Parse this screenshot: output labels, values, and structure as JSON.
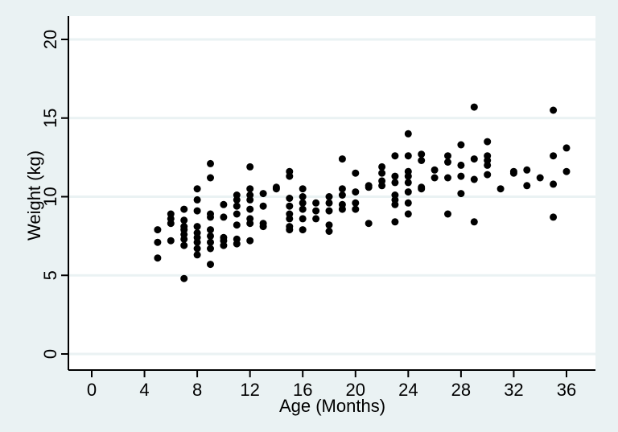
{
  "chart_data": {
    "type": "scatter",
    "title": "",
    "xlabel": "Age (Months)",
    "ylabel": "Weight (kg)",
    "xlim": [
      -2,
      38
    ],
    "ylim": [
      -1,
      21.5
    ],
    "xticks": [
      0,
      4,
      8,
      12,
      16,
      20,
      24,
      28,
      32,
      36
    ],
    "yticks": [
      0,
      5,
      10,
      15,
      20
    ],
    "grid": true,
    "colors": {
      "background": "#eaf2f3",
      "plot_area": "#ffffff",
      "gridline": "#eaf2f3",
      "marker": "#000000"
    },
    "points": [
      [
        5,
        7.9
      ],
      [
        5,
        7.1
      ],
      [
        5,
        6.1
      ],
      [
        6,
        8.9
      ],
      [
        6,
        8.6
      ],
      [
        6,
        8.3
      ],
      [
        6,
        7.2
      ],
      [
        7,
        9.2
      ],
      [
        7,
        8.5
      ],
      [
        7,
        8.1
      ],
      [
        7,
        7.9
      ],
      [
        7,
        7.6
      ],
      [
        7,
        7.3
      ],
      [
        7,
        6.9
      ],
      [
        7,
        4.8
      ],
      [
        8,
        10.5
      ],
      [
        8,
        9.8
      ],
      [
        8,
        9.1
      ],
      [
        8,
        8.1
      ],
      [
        8,
        7.7
      ],
      [
        8,
        7.4
      ],
      [
        8,
        7.1
      ],
      [
        8,
        6.7
      ],
      [
        8,
        6.3
      ],
      [
        9,
        12.1
      ],
      [
        9,
        11.2
      ],
      [
        9,
        8.9
      ],
      [
        9,
        8.7
      ],
      [
        9,
        7.9
      ],
      [
        9,
        7.5
      ],
      [
        9,
        7.1
      ],
      [
        9,
        6.7
      ],
      [
        9,
        5.7
      ],
      [
        10,
        9.5
      ],
      [
        10,
        8.7
      ],
      [
        10,
        7.4
      ],
      [
        10,
        7.2
      ],
      [
        10,
        6.9
      ],
      [
        11,
        10.1
      ],
      [
        11,
        9.8
      ],
      [
        11,
        9.4
      ],
      [
        11,
        8.9
      ],
      [
        11,
        8.2
      ],
      [
        11,
        7.3
      ],
      [
        11,
        7.0
      ],
      [
        12,
        11.9
      ],
      [
        12,
        10.5
      ],
      [
        12,
        10.1
      ],
      [
        12,
        9.8
      ],
      [
        12,
        9.2
      ],
      [
        12,
        8.6
      ],
      [
        12,
        8.3
      ],
      [
        12,
        7.2
      ],
      [
        13,
        10.2
      ],
      [
        13,
        9.4
      ],
      [
        13,
        8.3
      ],
      [
        13,
        8.1
      ],
      [
        14,
        10.6
      ],
      [
        14,
        10.5
      ],
      [
        15,
        11.6
      ],
      [
        15,
        11.3
      ],
      [
        15,
        9.9
      ],
      [
        15,
        9.4
      ],
      [
        15,
        8.9
      ],
      [
        15,
        8.6
      ],
      [
        15,
        8.1
      ],
      [
        15,
        7.9
      ],
      [
        16,
        10.5
      ],
      [
        16,
        10.0
      ],
      [
        16,
        9.6
      ],
      [
        16,
        9.2
      ],
      [
        16,
        8.6
      ],
      [
        16,
        7.9
      ],
      [
        17,
        9.6
      ],
      [
        17,
        9.1
      ],
      [
        17,
        8.6
      ],
      [
        18,
        10.0
      ],
      [
        18,
        9.6
      ],
      [
        18,
        9.1
      ],
      [
        18,
        8.2
      ],
      [
        18,
        7.8
      ],
      [
        19,
        12.4
      ],
      [
        19,
        10.5
      ],
      [
        19,
        10.1
      ],
      [
        19,
        9.5
      ],
      [
        19,
        9.2
      ],
      [
        20,
        11.5
      ],
      [
        20,
        10.3
      ],
      [
        20,
        9.6
      ],
      [
        20,
        9.2
      ],
      [
        21,
        10.7
      ],
      [
        21,
        10.6
      ],
      [
        21,
        8.3
      ],
      [
        22,
        11.9
      ],
      [
        22,
        11.5
      ],
      [
        22,
        11.0
      ],
      [
        22,
        10.7
      ],
      [
        23,
        12.6
      ],
      [
        23,
        11.3
      ],
      [
        23,
        10.9
      ],
      [
        23,
        10.1
      ],
      [
        23,
        9.8
      ],
      [
        23,
        9.5
      ],
      [
        23,
        8.4
      ],
      [
        24,
        14.0
      ],
      [
        24,
        12.6
      ],
      [
        24,
        11.6
      ],
      [
        24,
        11.3
      ],
      [
        24,
        10.9
      ],
      [
        24,
        10.3
      ],
      [
        24,
        9.6
      ],
      [
        24,
        8.9
      ],
      [
        25,
        12.7
      ],
      [
        25,
        12.3
      ],
      [
        25,
        10.6
      ],
      [
        25,
        10.5
      ],
      [
        26,
        11.7
      ],
      [
        26,
        11.2
      ],
      [
        27,
        12.6
      ],
      [
        27,
        12.2
      ],
      [
        27,
        11.2
      ],
      [
        27,
        8.9
      ],
      [
        28,
        13.3
      ],
      [
        28,
        12.0
      ],
      [
        28,
        11.3
      ],
      [
        28,
        10.2
      ],
      [
        29,
        15.7
      ],
      [
        29,
        12.4
      ],
      [
        29,
        11.1
      ],
      [
        29,
        8.4
      ],
      [
        30,
        13.5
      ],
      [
        30,
        12.6
      ],
      [
        30,
        12.3
      ],
      [
        30,
        12.0
      ],
      [
        30,
        11.4
      ],
      [
        31,
        10.5
      ],
      [
        32,
        11.6
      ],
      [
        32,
        11.5
      ],
      [
        33,
        11.7
      ],
      [
        33,
        10.7
      ],
      [
        34,
        11.2
      ],
      [
        35,
        15.5
      ],
      [
        35,
        12.6
      ],
      [
        35,
        10.8
      ],
      [
        35,
        8.7
      ],
      [
        36,
        13.1
      ],
      [
        36,
        11.6
      ]
    ]
  }
}
